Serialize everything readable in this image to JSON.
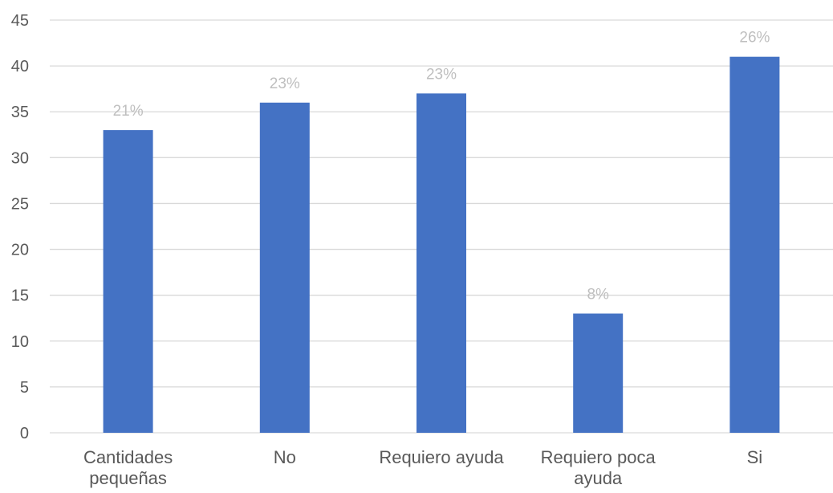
{
  "chart_data": {
    "type": "bar",
    "categories": [
      [
        "Cantidades",
        "pequeñas"
      ],
      [
        "No"
      ],
      [
        "Requiero ayuda"
      ],
      [
        "Requiero poca",
        "ayuda"
      ],
      [
        "Si"
      ]
    ],
    "values": [
      33,
      36,
      37,
      13,
      41
    ],
    "data_labels": [
      "21%",
      "23%",
      "23%",
      "8%",
      "26%"
    ],
    "ylim": [
      0,
      45
    ],
    "yticks": [
      "0",
      "5",
      "10",
      "15",
      "20",
      "25",
      "30",
      "35",
      "40",
      "45"
    ],
    "grid": true,
    "legend": "none",
    "colors": {
      "bar": "#4472C4",
      "grid": "#D9D9D9",
      "tick_label": "#595959",
      "data_label": "#BFBFBF"
    }
  }
}
